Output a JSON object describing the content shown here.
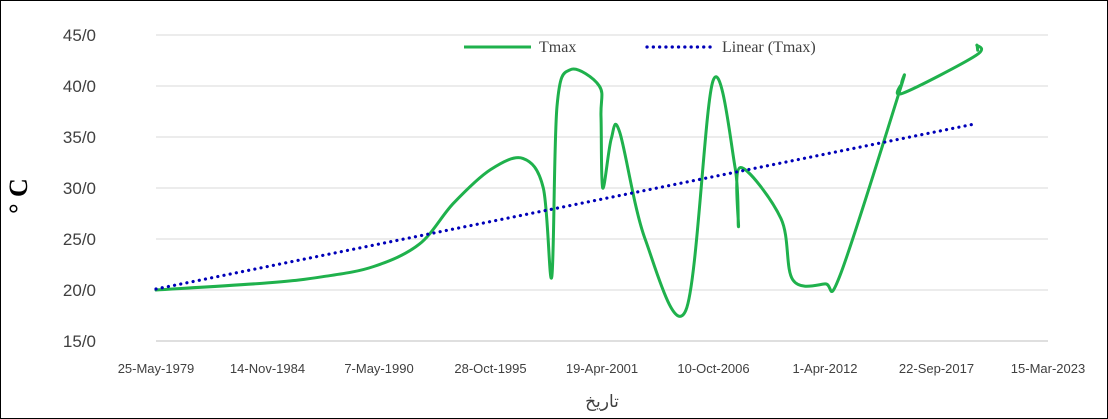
{
  "chart_data": {
    "type": "line",
    "xlabel": "تاریخ",
    "ylabel": "° C",
    "ylim": [
      15,
      45
    ],
    "xlim": [
      "1979-05-25",
      "2023-03-15"
    ],
    "y_ticks": [
      15,
      20,
      25,
      30,
      35,
      40,
      45
    ],
    "y_tick_labels": [
      "15/0",
      "20/0",
      "25/0",
      "30/0",
      "35/0",
      "40/0",
      "45/0"
    ],
    "x_ticks": [
      "1979-05-25",
      "1984-11-14",
      "1990-05-07",
      "1995-10-28",
      "2001-04-19",
      "2006-10-10",
      "2012-04-01",
      "2017-09-22",
      "2023-03-15"
    ],
    "x_tick_labels": [
      "25-May-1979",
      "14-Nov-1984",
      "7-May-1990",
      "28-Oct-1995",
      "19-Apr-2001",
      "10-Oct-2006",
      "1-Apr-2012",
      "22-Sep-2017",
      "15-Mar-2023"
    ],
    "grid": "horizontal",
    "legend_position": "top-right",
    "series": [
      {
        "name": "Tmax",
        "color": "#1fb14c",
        "style": "solid",
        "x": [
          "1979-05-25",
          "1984-11-14",
          "1987-08-01",
          "1990-02-01",
          "1992-05-01",
          "1994-01-01",
          "1995-10-28",
          "1997-06-01",
          "1998-06-01",
          "1998-11-01",
          "1999-02-01",
          "1999-10-01",
          "2001-03-01",
          "2001-04-01",
          "2001-05-01",
          "2001-10-01",
          "2002-03-01",
          "2003-06-01",
          "2005-06-01",
          "2006-10-01",
          "2007-11-01",
          "2008-01-01",
          "2008-02-01",
          "2010-02-01",
          "2010-09-01",
          "2012-04-01",
          "2013-01-01",
          "2015-12-01",
          "2016-01-01",
          "2016-02-01",
          "2019-09-01",
          "2019-09-15",
          "2019-10-01"
        ],
        "y": [
          20,
          20.7,
          21.3,
          22.3,
          24.5,
          28.5,
          31.8,
          32.9,
          30,
          21.3,
          38,
          41.6,
          40,
          37,
          30,
          34.8,
          35.5,
          25,
          18,
          40.5,
          32,
          26.2,
          32,
          27,
          21,
          20.6,
          21.5,
          39.5,
          40.2,
          39.3,
          43,
          44,
          43.5
        ]
      },
      {
        "name": "Linear (Tmax)",
        "color": "#0000b8",
        "style": "dotted",
        "x": [
          "1979-05-25",
          "2019-09-01"
        ],
        "y": [
          20.1,
          36.3
        ]
      }
    ]
  }
}
